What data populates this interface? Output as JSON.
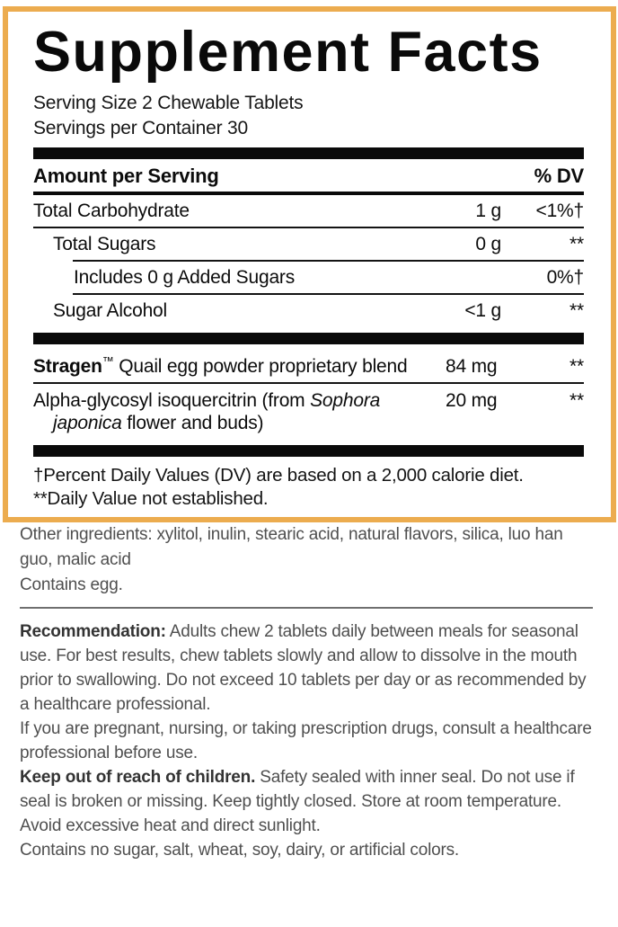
{
  "colors": {
    "panel_border": "#ECAC4F",
    "ink": "#0c0c0c",
    "body_text": "#4f4f4f",
    "divider": "#6f6f6f"
  },
  "panel": {
    "title": "Supplement Facts",
    "serving_size": "Serving Size 2 Chewable Tablets",
    "servings_per_container": "Servings per Container 30",
    "header": {
      "amount_label": "Amount per Serving",
      "dv_label": "% DV"
    },
    "rows": [
      {
        "name": "Total Carbohydrate",
        "amount": "1 g",
        "dv": "<1%†"
      },
      {
        "name": "Total Sugars",
        "amount": "0 g",
        "dv": "**"
      },
      {
        "name": "Includes 0 g Added Sugars",
        "amount": "",
        "dv": "0%†"
      },
      {
        "name": "Sugar Alcohol",
        "amount": "<1 g",
        "dv": "**"
      }
    ],
    "blend_rows": [
      {
        "brand": "Stragen",
        "tm": "™",
        "rest": " Quail egg powder proprietary blend",
        "amount": "84 mg",
        "dv": "**"
      },
      {
        "prefix": "Alpha-glycosyl isoquercitrin (from ",
        "latin": "Sophora japonica",
        "suffix": " flower and buds)",
        "amount": "20 mg",
        "dv": "**"
      }
    ],
    "footnotes": [
      "†Percent Daily Values (DV) are based on a 2,000 calorie diet.",
      "**Daily Value not established."
    ]
  },
  "below": {
    "other_ingredients": "Other ingredients: xylitol, inulin, stearic acid, natural flavors, silica, luo han guo, malic acid",
    "contains_allergen": "Contains egg.",
    "recommendation_label": "Recommendation:",
    "recommendation_text": " Adults chew 2 tablets daily between meals for seasonal use. For best results, chew tablets slowly and allow to dissolve in the mouth prior to swallowing. Do not exceed 10 tablets per day or as recommended by a healthcare professional.",
    "pregnancy_warning": "If you are pregnant, nursing, or taking prescription drugs, consult a healthcare professional before use.",
    "keep_label": "Keep out of reach of children.",
    "keep_text": " Safety sealed with inner seal. Do not use if seal is broken or missing. Keep tightly closed. Store at room temperature. Avoid excessive heat and direct sunlight.",
    "no_additives": "Contains no sugar, salt, wheat, soy, dairy, or artificial colors."
  }
}
